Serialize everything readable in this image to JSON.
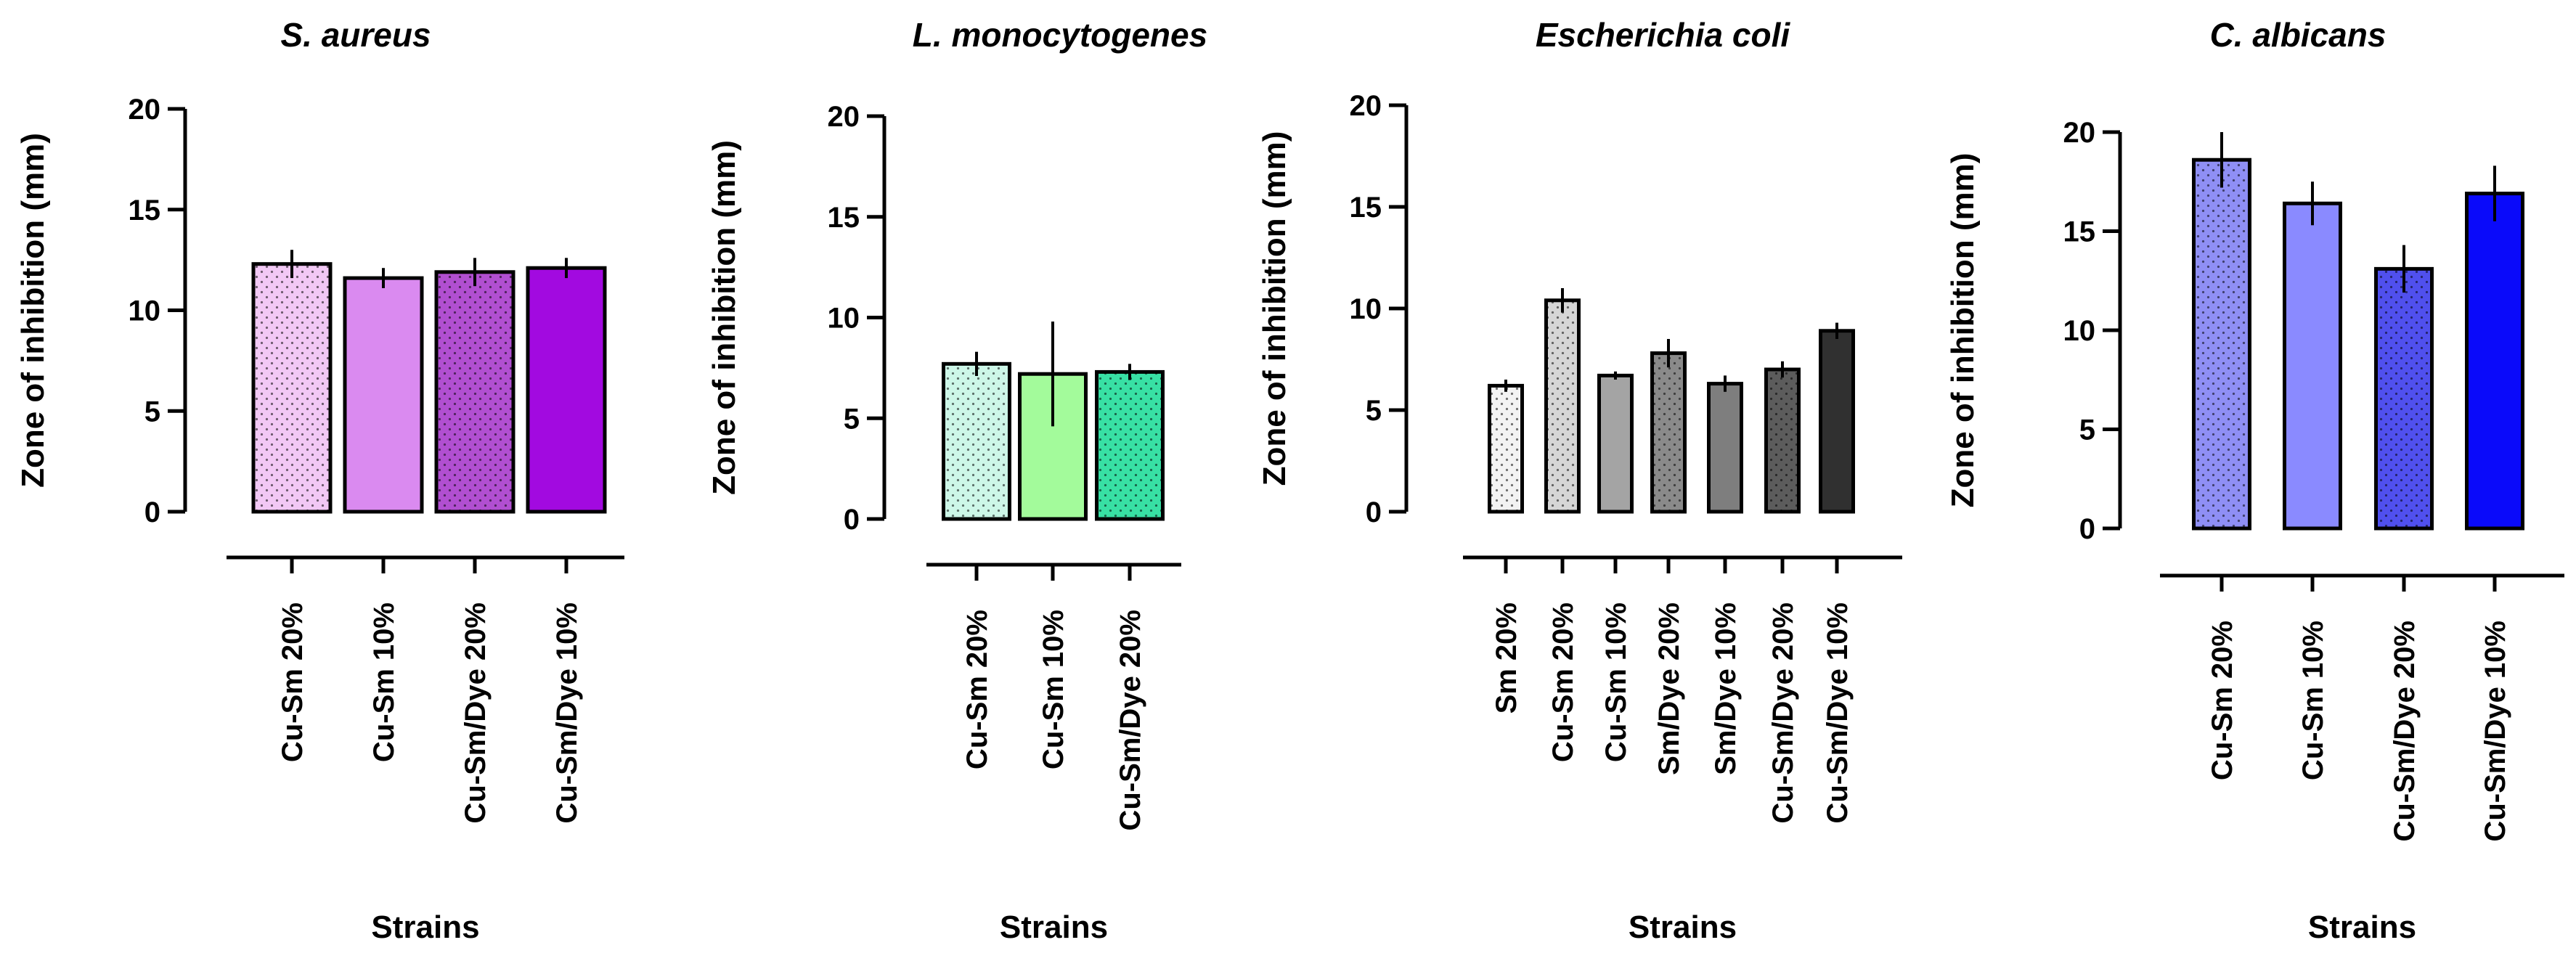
{
  "chart_data": [
    {
      "type": "bar",
      "title": "S. aureus",
      "xlabel": "Strains",
      "ylabel": "Zone of inhibition (mm)",
      "ylim": [
        0,
        20
      ],
      "yticks": [
        0,
        5,
        10,
        15,
        20
      ],
      "categories": [
        "Cu-Sm 20%",
        "Cu-Sm 10%",
        "Cu-Sm/Dye 20%",
        "Cu-Sm/Dye 10%"
      ],
      "values": [
        12.3,
        11.6,
        11.9,
        12.1
      ],
      "errors": [
        0.7,
        0.5,
        0.7,
        0.5
      ],
      "colors": [
        "#f2c8f5",
        "#da8af0",
        "#b14fd1",
        "#a20ae0"
      ],
      "patterns": [
        "dots",
        "none",
        "dots",
        "none"
      ]
    },
    {
      "type": "bar",
      "title": "L. monocytogenes",
      "xlabel": "Strains",
      "ylabel": "Zone of inhibition (mm)",
      "ylim": [
        0,
        20
      ],
      "yticks": [
        0,
        5,
        10,
        15,
        20
      ],
      "categories": [
        "Cu-Sm 20%",
        "Cu-Sm 10%",
        "Cu-Sm/Dye 20%"
      ],
      "values": [
        7.7,
        7.2,
        7.3
      ],
      "errors": [
        0.6,
        2.6,
        0.4
      ],
      "colors": [
        "#cdf7e8",
        "#a3fb9b",
        "#38e0a4"
      ],
      "patterns": [
        "dots",
        "none",
        "dots"
      ]
    },
    {
      "type": "bar",
      "title": "Escherichia coli",
      "xlabel": "Strains",
      "ylabel": "Zone of inhibition (mm)",
      "ylim": [
        0,
        20
      ],
      "yticks": [
        0,
        5,
        10,
        15,
        20
      ],
      "categories": [
        "Sm 20%",
        "Cu-Sm 20%",
        "Cu-Sm 10%",
        "Sm/Dye 20%",
        "Sm/Dye 10%",
        "Cu-Sm/Dye  20%",
        "Cu-Sm/Dye  10%"
      ],
      "values": [
        6.2,
        10.4,
        6.7,
        7.8,
        6.3,
        7.0,
        8.9
      ],
      "errors": [
        0.3,
        0.6,
        0.2,
        0.7,
        0.4,
        0.4,
        0.4
      ],
      "colors": [
        "#f3f3f3",
        "#d6d6d6",
        "#a4a4a4",
        "#8a8a8a",
        "#7e7e7e",
        "#5c5c5c",
        "#303030"
      ],
      "patterns": [
        "dots",
        "dots",
        "none",
        "dots",
        "none",
        "dots",
        "none"
      ]
    },
    {
      "type": "bar",
      "title": "C. albicans",
      "xlabel": "Strains",
      "ylabel": "Zone of inhibition (mm)",
      "ylim": [
        0,
        20
      ],
      "yticks": [
        0,
        5,
        10,
        15,
        20
      ],
      "categories": [
        "Cu-Sm 20%",
        "Cu-Sm 10%",
        "Cu-Sm/Dye 20%",
        "Cu-Sm/Dye 10%"
      ],
      "values": [
        18.6,
        16.4,
        13.1,
        16.9
      ],
      "errors": [
        1.4,
        1.1,
        1.2,
        1.4
      ],
      "colors": [
        "#8f8ff5",
        "#8a8aff",
        "#5050ee",
        "#0a0afa"
      ],
      "patterns": [
        "dots",
        "none",
        "dots",
        "none"
      ]
    }
  ]
}
